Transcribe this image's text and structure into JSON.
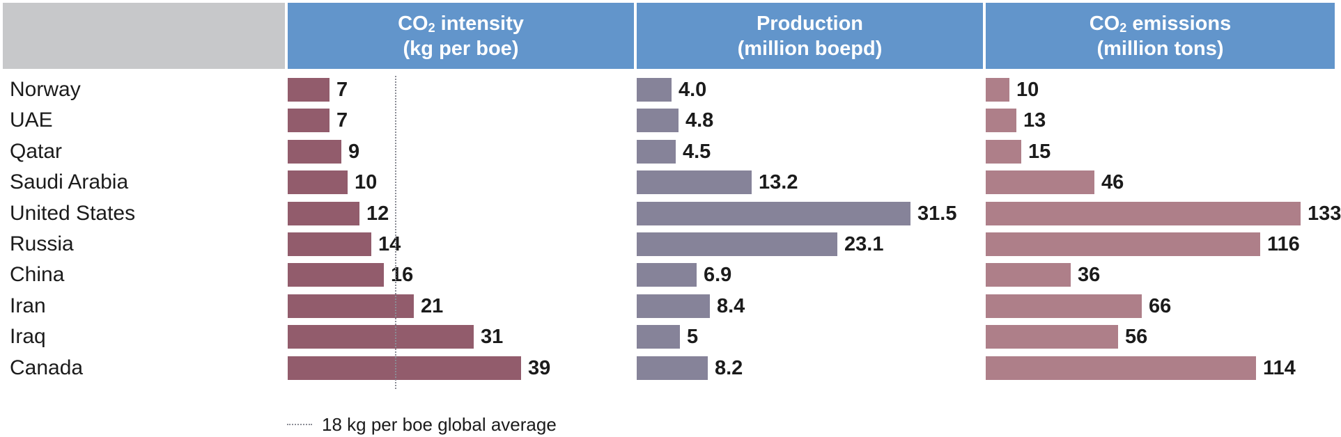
{
  "headers": {
    "intensity": {
      "line1_pre": "CO",
      "line1_sub": "2",
      "line1_post": " intensity",
      "line2": "(kg per boe)"
    },
    "production": {
      "line1": "Production",
      "line2": "(million boepd)"
    },
    "emissions": {
      "line1_pre": "CO",
      "line1_sub": "2",
      "line1_post": " emissions",
      "line2": "(million tons)"
    }
  },
  "legend": {
    "label": "18 kg per boe global average"
  },
  "colors": {
    "header_bg": "#6295cb",
    "header_blank_bg": "#c7c8ca",
    "intensity_bar": "#925c6c",
    "production_bar": "#868399",
    "emissions_bar": "#ae7f89"
  },
  "chart_data": [
    {
      "type": "bar",
      "orientation": "horizontal",
      "title": "CO2 intensity (kg per boe)",
      "categories": [
        "Norway",
        "UAE",
        "Qatar",
        "Saudi Arabia",
        "United States",
        "Russia",
        "China",
        "Iran",
        "Iraq",
        "Canada"
      ],
      "values": [
        7,
        7,
        9,
        10,
        12,
        14,
        16,
        21,
        31,
        39
      ],
      "value_labels": [
        "7",
        "7",
        "9",
        "10",
        "12",
        "14",
        "16",
        "21",
        "31",
        "39"
      ],
      "xlim": [
        0,
        42
      ],
      "reference_line": {
        "value": 18,
        "label": "18 kg per boe global average",
        "style": "dotted"
      },
      "grid": false
    },
    {
      "type": "bar",
      "orientation": "horizontal",
      "title": "Production (million boepd)",
      "categories": [
        "Norway",
        "UAE",
        "Qatar",
        "Saudi Arabia",
        "United States",
        "Russia",
        "China",
        "Iran",
        "Iraq",
        "Canada"
      ],
      "values": [
        4.0,
        4.8,
        4.5,
        13.2,
        31.5,
        23.1,
        6.9,
        8.4,
        5,
        8.2
      ],
      "value_labels": [
        "4.0",
        "4.8",
        "4.5",
        "13.2",
        "31.5",
        "23.1",
        "6.9",
        "8.4",
        "5",
        "8.2"
      ],
      "xlim": [
        0,
        33
      ],
      "grid": false
    },
    {
      "type": "bar",
      "orientation": "horizontal",
      "title": "CO2 emissions (million tons)",
      "categories": [
        "Norway",
        "UAE",
        "Qatar",
        "Saudi Arabia",
        "United States",
        "Russia",
        "China",
        "Iran",
        "Iraq",
        "Canada"
      ],
      "values": [
        10,
        13,
        15,
        46,
        133,
        116,
        36,
        66,
        56,
        114
      ],
      "value_labels": [
        "10",
        "13",
        "15",
        "46",
        "133",
        "116",
        "36",
        "66",
        "56",
        "114"
      ],
      "xlim": [
        0,
        140
      ],
      "grid": false
    }
  ]
}
